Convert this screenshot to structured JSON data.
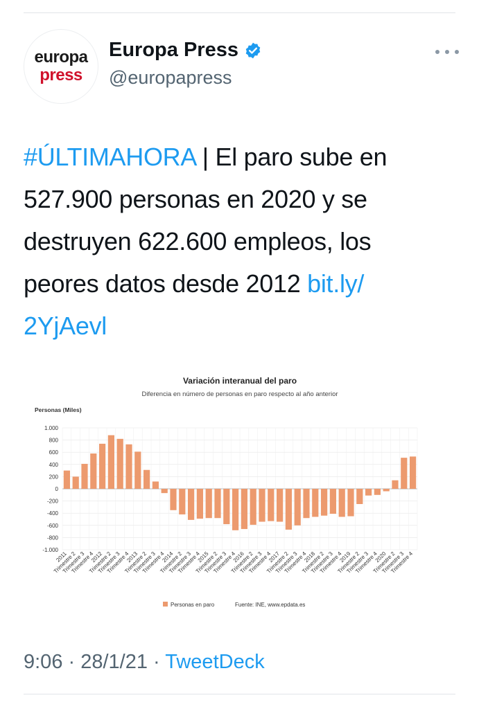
{
  "tweet": {
    "display_name": "Europa Press",
    "handle": "@europapress",
    "avatar_line1": "europa",
    "avatar_line2": "press",
    "hashtag": "#ÚLTIMAHORA",
    "text_line1_rest": " | El paro sube en",
    "text_line2": "527.900 personas en 2020 y se",
    "text_line3": "destruyen 622.600 empleos, los",
    "text_line4_plain": "peores datos desde 2012 ",
    "link_part1": "bit.ly/",
    "link_part2": "2YjAevl",
    "time": "9:06",
    "date": "28/1/21",
    "separator": " · ",
    "source": "TweetDeck",
    "verified_icon": "verified-badge-icon",
    "more_icon": "more-options-icon"
  },
  "colors": {
    "accent": "#1d9bf0",
    "bar": "#ec9a6e",
    "brand_red": "#d0112b",
    "muted": "#536471"
  },
  "chart_data": {
    "type": "bar",
    "title": "Variación interanual del paro",
    "subtitle": "Diferencia en número de personas en paro respecto al año anterior",
    "ylabel": "Personas (Miles)",
    "ylim": [
      -1000,
      1000
    ],
    "yticks": [
      "1.000",
      "800",
      "600",
      "400",
      "200",
      "0",
      "-200",
      "-400",
      "-600",
      "-800",
      "-1.000"
    ],
    "grid": true,
    "legend": "bottom",
    "series": [
      {
        "name": "Personas en paro",
        "values": [
          300,
          200,
          410,
          580,
          740,
          880,
          820,
          730,
          610,
          310,
          120,
          -70,
          -350,
          -420,
          -510,
          -490,
          -480,
          -480,
          -580,
          -680,
          -660,
          -590,
          -540,
          -530,
          -540,
          -670,
          -600,
          -480,
          -460,
          -440,
          -410,
          -460,
          -450,
          -250,
          -110,
          -100,
          -40,
          140,
          510,
          530
        ]
      }
    ],
    "categories": [
      "2011",
      "Trimestre 2",
      "Trimestre 3",
      "Trimestre 4",
      "2012",
      "Trimestre 2",
      "Trimestre 3",
      "Trimestre 4",
      "2013",
      "Trimestre 2",
      "Trimestre 3",
      "Trimestre 4",
      "2014",
      "Trimestre 2",
      "Trimestre 3",
      "Trimestre 4",
      "2015",
      "Trimestre 2",
      "Trimestre 3",
      "Trimestre 4",
      "2016",
      "Trimestre 2",
      "Trimestre 3",
      "Trimestre 4",
      "2017",
      "Trimestre 2",
      "Trimestre 3",
      "Trimestre 4",
      "2018",
      "Trimestre 2",
      "Trimestre 3",
      "Trimestre 4",
      "2019",
      "Trimestre 2",
      "Trimestre 3",
      "Trimestre 4",
      "2020",
      "Trimestre 2",
      "Trimestre 3",
      "Trimestre 4"
    ],
    "legend_label": "Personas en paro",
    "source_note": "Fuente: INE, www.epdata.es"
  }
}
